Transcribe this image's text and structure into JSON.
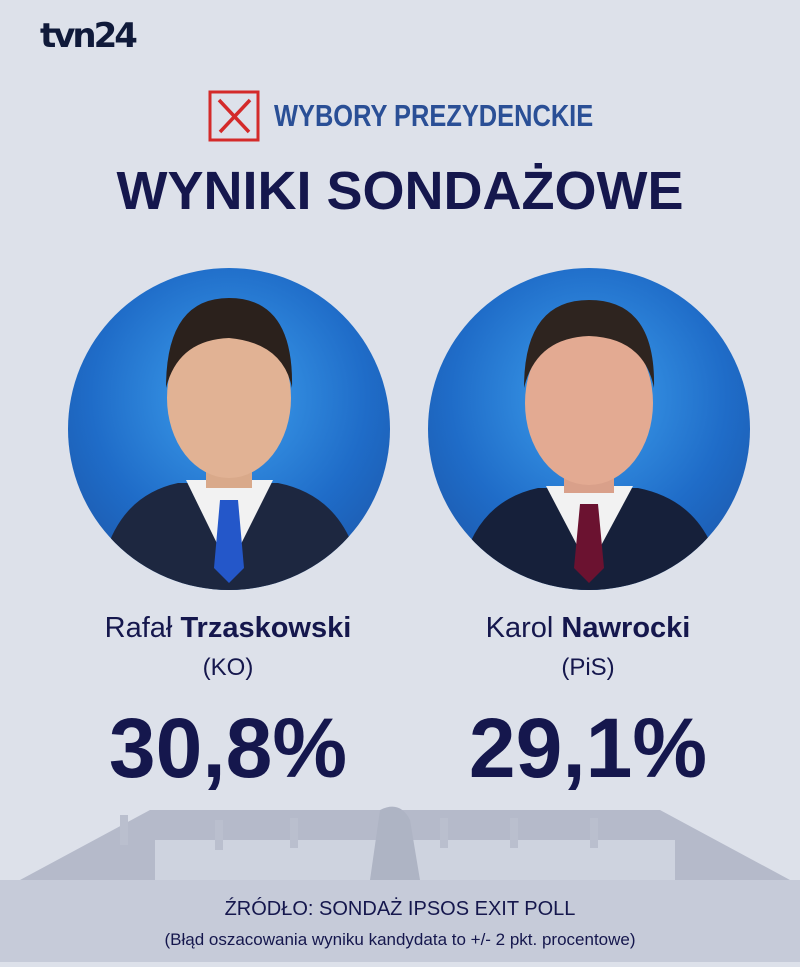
{
  "brand": {
    "logo": "tvn24"
  },
  "header": {
    "kicker": "WYBORY PREZYDENCKIE",
    "title": "WYNIKI SONDAŻOWE",
    "ballot_icon": "ballot-x-icon"
  },
  "colors": {
    "navy": "#15174d",
    "kicker_blue": "#2a4f96",
    "ballot_red": "#d42a2a",
    "background": "#dde1ea",
    "circle_blue": "#1f6cc8"
  },
  "candidates": [
    {
      "first_name": "Rafał",
      "last_name": "Trzaskowski",
      "party": "(KO)",
      "result": "30,8%",
      "tie_color": "#2457c9"
    },
    {
      "first_name": "Karol",
      "last_name": "Nawrocki",
      "party": "(PiS)",
      "result": "29,1%",
      "tie_color": "#6b1230"
    }
  ],
  "footer": {
    "source": "ŹRÓDŁO: SONDAŻ IPSOS EXIT POLL",
    "note": "(Błąd oszacowania wyniku kandydata to +/- 2 pkt. procentowe)"
  }
}
